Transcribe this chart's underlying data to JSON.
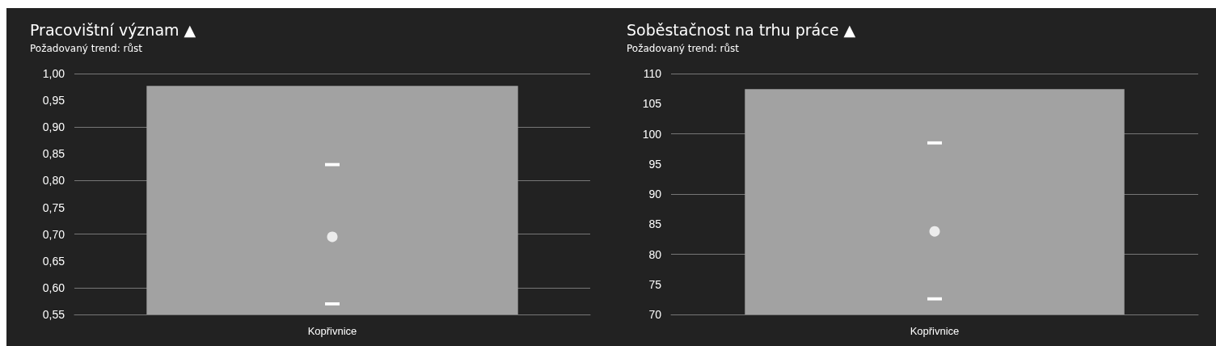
{
  "chart_data": [
    {
      "type": "bar",
      "title": "Pracovištní význam ▲",
      "subtitle": "Požadovaný trend: růst",
      "categories": [
        "Kopřivnice"
      ],
      "series": [
        {
          "type": "bar",
          "color": "#a2a2a2",
          "values": [
            0.977
          ]
        },
        {
          "type": "scatter",
          "color": "#ffffff",
          "values": [
            0.695
          ],
          "errors": [
            [
              0.57,
              0.83
            ]
          ]
        }
      ],
      "ylim": [
        0.55,
        1.0
      ],
      "yticks": [
        {
          "value": 0.55,
          "label": "0,55"
        },
        {
          "value": 0.6,
          "label": "0,60"
        },
        {
          "value": 0.65,
          "label": "0,65"
        },
        {
          "value": 0.7,
          "label": "0,70"
        },
        {
          "value": 0.75,
          "label": "0,75"
        },
        {
          "value": 0.8,
          "label": "0,80"
        },
        {
          "value": 0.85,
          "label": "0,85"
        },
        {
          "value": 0.9,
          "label": "0,90"
        },
        {
          "value": 0.95,
          "label": "0,95"
        },
        {
          "value": 1.0,
          "label": "1,00"
        }
      ],
      "grid": "y",
      "marker": "circle"
    },
    {
      "type": "bar",
      "title": "Soběstačnost na trhu práce ▲",
      "subtitle": "Požadovaný trend: růst",
      "categories": [
        "Kopřivnice"
      ],
      "series": [
        {
          "type": "bar",
          "color": "#a2a2a2",
          "values": [
            107.4
          ]
        },
        {
          "type": "scatter",
          "color": "#ffffff",
          "values": [
            83.8
          ],
          "errors": [
            [
              72.6,
              98.5
            ]
          ]
        }
      ],
      "ylim": [
        70,
        110
      ],
      "yticks": [
        70,
        75,
        80,
        85,
        90,
        95,
        100,
        105,
        110
      ],
      "grid": "y",
      "marker": "circle"
    }
  ]
}
